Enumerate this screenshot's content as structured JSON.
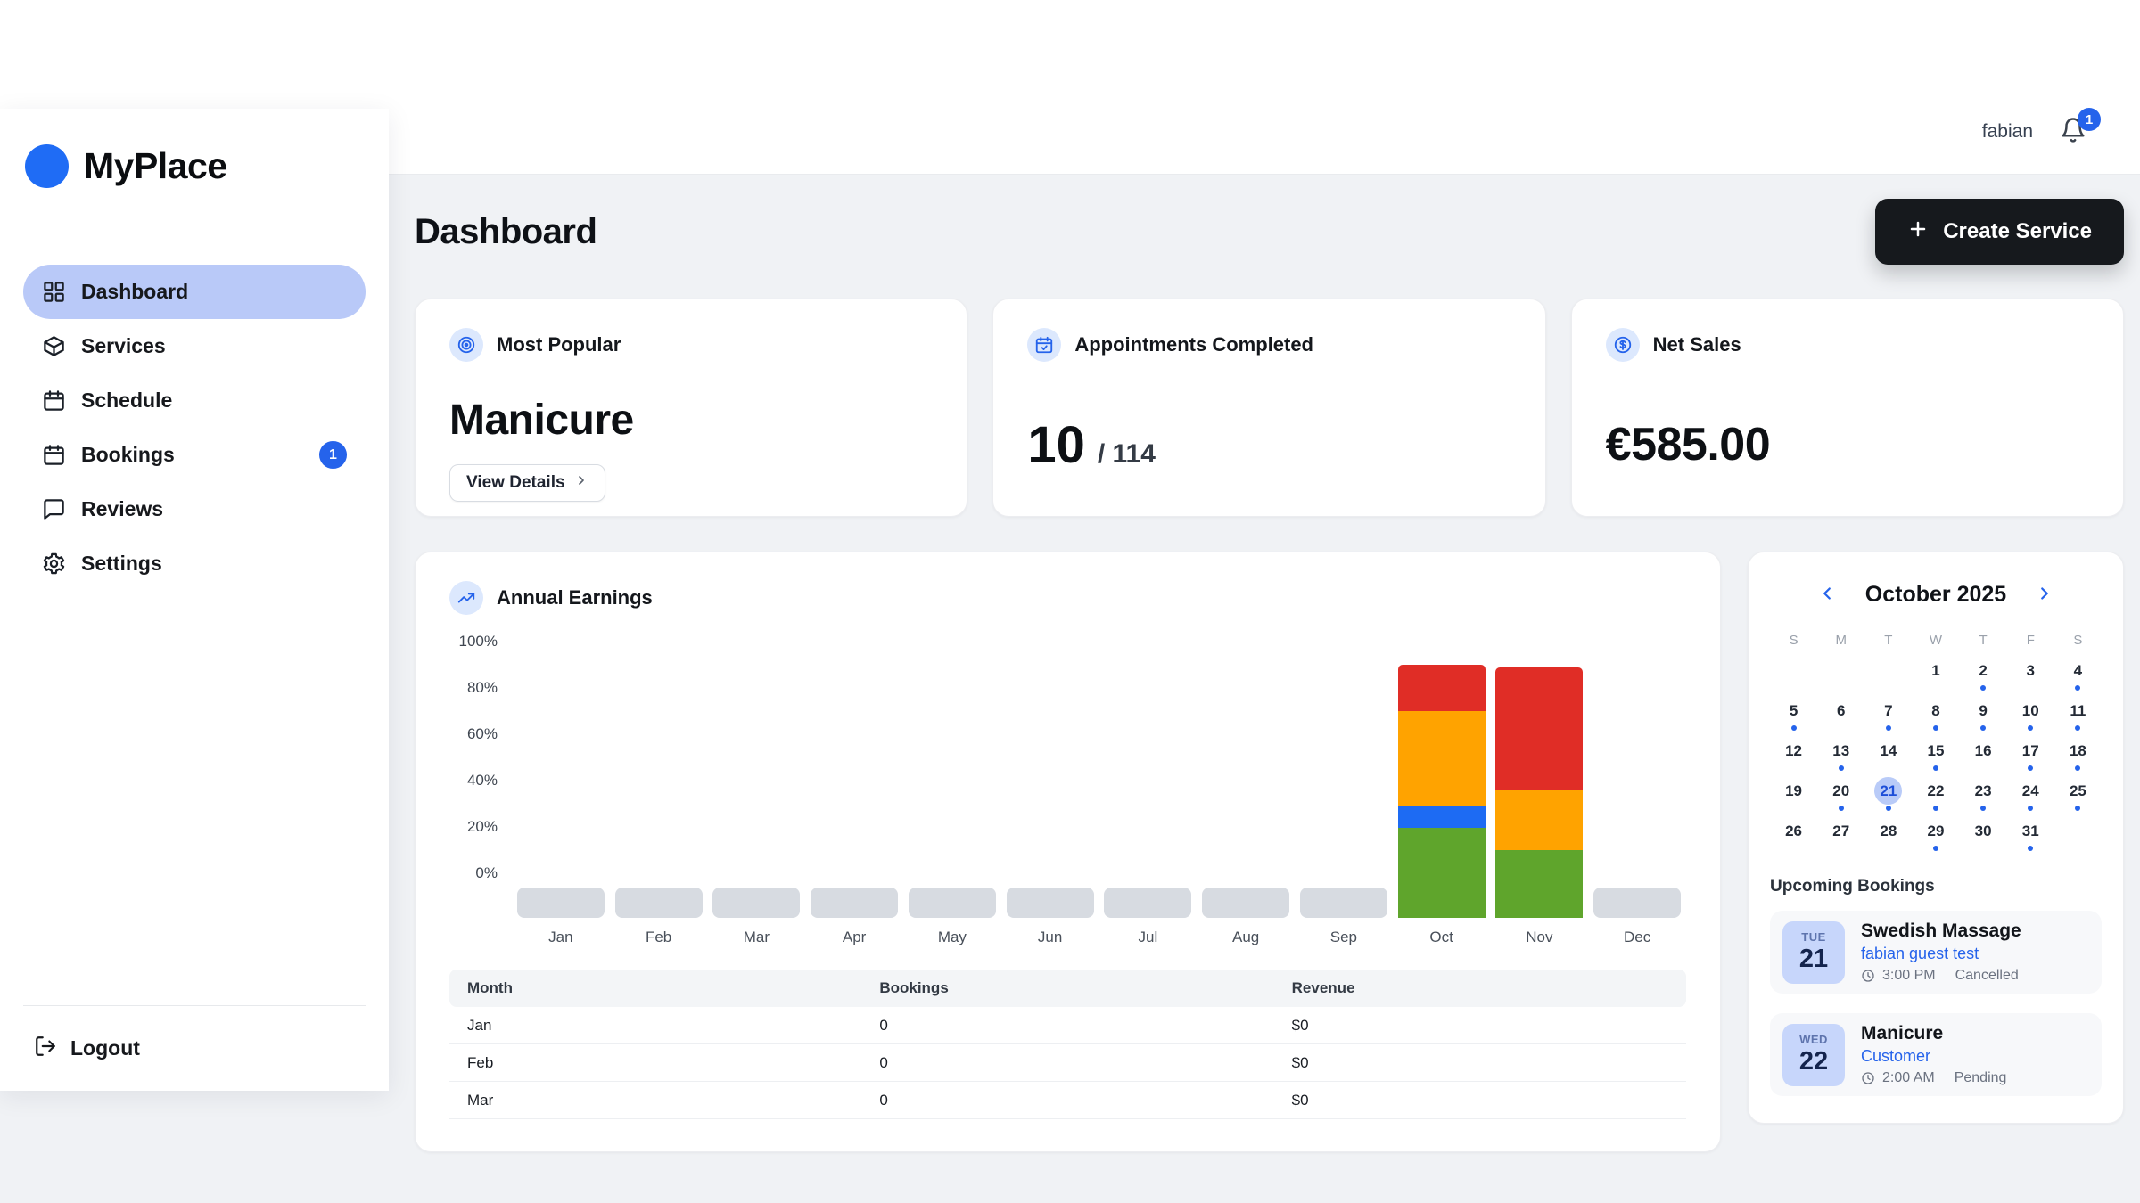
{
  "app": {
    "name": "MyPlace"
  },
  "topbar": {
    "username": "fabian",
    "notification_count": "1"
  },
  "sidebar": {
    "items": [
      {
        "label": "Dashboard",
        "icon": "grid",
        "active": true
      },
      {
        "label": "Services",
        "icon": "box"
      },
      {
        "label": "Schedule",
        "icon": "calendar"
      },
      {
        "label": "Bookings",
        "icon": "calendar",
        "badge": "1"
      },
      {
        "label": "Reviews",
        "icon": "chat"
      },
      {
        "label": "Settings",
        "icon": "gear"
      }
    ],
    "logout_label": "Logout"
  },
  "header": {
    "title": "Dashboard",
    "create_service_label": "Create Service"
  },
  "stat_cards": {
    "most_popular": {
      "title": "Most Popular",
      "value": "Manicure",
      "button_label": "View Details"
    },
    "appointments": {
      "title": "Appointments Completed",
      "completed": "10",
      "total_suffix": "/ 114"
    },
    "net_sales": {
      "title": "Net Sales",
      "value": "€585.00"
    }
  },
  "chart_data": {
    "type": "bar",
    "stacked": true,
    "title": "Annual Earnings",
    "categories": [
      "Jan",
      "Feb",
      "Mar",
      "Apr",
      "May",
      "Jun",
      "Jul",
      "Aug",
      "Sep",
      "Oct",
      "Nov",
      "Dec"
    ],
    "series": [
      {
        "name": "green",
        "color": "#5fa52c",
        "values": [
          0,
          0,
          0,
          0,
          0,
          0,
          0,
          0,
          0,
          33,
          25,
          0
        ]
      },
      {
        "name": "blue",
        "color": "#1d6bf3",
        "values": [
          0,
          0,
          0,
          0,
          0,
          0,
          0,
          0,
          0,
          8,
          0,
          0
        ]
      },
      {
        "name": "orange",
        "color": "#ffa300",
        "values": [
          0,
          0,
          0,
          0,
          0,
          0,
          0,
          0,
          0,
          35,
          22,
          0
        ]
      },
      {
        "name": "red",
        "color": "#e02d26",
        "values": [
          0,
          0,
          0,
          0,
          0,
          0,
          0,
          0,
          0,
          17,
          45,
          0
        ]
      }
    ],
    "yticks": [
      "100%",
      "80%",
      "60%",
      "40%",
      "20%",
      "0%"
    ],
    "ylim": [
      0,
      100
    ],
    "legend": false,
    "grid": false
  },
  "earnings_table": {
    "headers": [
      "Month",
      "Bookings",
      "Revenue"
    ],
    "rows": [
      [
        "Jan",
        "0",
        "$0"
      ],
      [
        "Feb",
        "0",
        "$0"
      ],
      [
        "Mar",
        "0",
        "$0"
      ]
    ]
  },
  "calendar": {
    "title": "October 2025",
    "day_headers": [
      "S",
      "M",
      "T",
      "W",
      "T",
      "F",
      "S"
    ],
    "weeks": [
      [
        "",
        "",
        "",
        "1",
        "2",
        "3",
        "4"
      ],
      [
        "5",
        "6",
        "7",
        "8",
        "9",
        "10",
        "11"
      ],
      [
        "12",
        "13",
        "14",
        "15",
        "16",
        "17",
        "18"
      ],
      [
        "19",
        "20",
        "21",
        "22",
        "23",
        "24",
        "25"
      ],
      [
        "26",
        "27",
        "28",
        "29",
        "30",
        "31",
        ""
      ]
    ],
    "selected_day": "21",
    "days_with_bookings": [
      "2",
      "4",
      "5",
      "7",
      "8",
      "9",
      "10",
      "11",
      "13",
      "15",
      "17",
      "18",
      "20",
      "21",
      "22",
      "23",
      "24",
      "25",
      "29",
      "31"
    ]
  },
  "upcoming": {
    "title": "Upcoming Bookings",
    "items": [
      {
        "dow": "TUE",
        "day": "21",
        "service": "Swedish Massage",
        "customer": "fabian guest test",
        "time": "3:00 PM",
        "status": "Cancelled"
      },
      {
        "dow": "WED",
        "day": "22",
        "service": "Manicure",
        "customer": "Customer",
        "time": "2:00 AM",
        "status": "Pending"
      }
    ]
  },
  "colors": {
    "accent_blue": "#2563eb",
    "active_nav_bg": "#b9c9f8",
    "logo_blue": "#1f6cf5",
    "create_button_bg": "#16191d",
    "chart_green": "#5fa52c",
    "chart_blue": "#1d6bf3",
    "chart_orange": "#ffa300",
    "chart_red": "#e02d26",
    "chart_placeholder_gray": "#d7dbe1",
    "booking_badge_bg": "#c7d6fb"
  }
}
